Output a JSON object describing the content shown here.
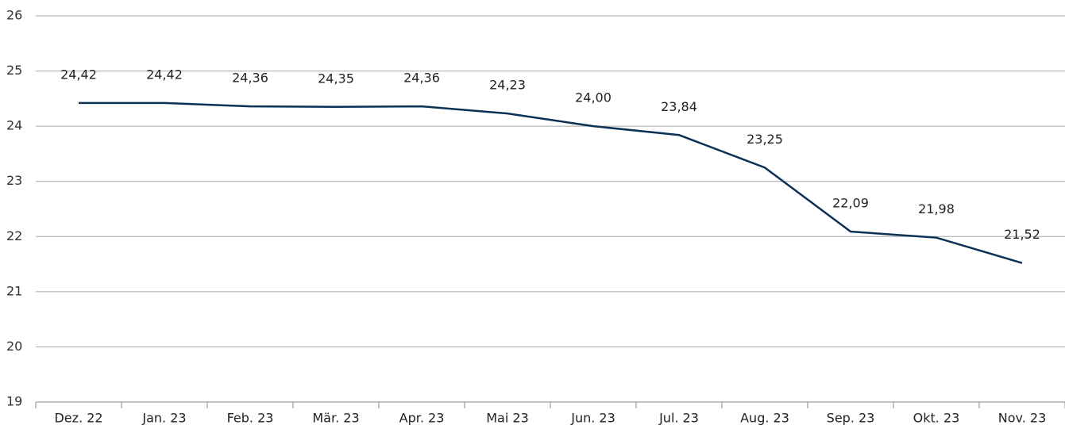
{
  "chart_data": {
    "type": "line",
    "categories": [
      "Dez. 22",
      "Jan. 23",
      "Feb. 23",
      "Mär. 23",
      "Apr. 23",
      "Mai 23",
      "Jun. 23",
      "Jul. 23",
      "Aug. 23",
      "Sep. 23",
      "Okt. 23",
      "Nov. 23"
    ],
    "values": [
      24.42,
      24.42,
      24.36,
      24.35,
      24.36,
      24.23,
      24.0,
      23.84,
      23.25,
      22.09,
      21.98,
      21.52
    ],
    "value_labels": [
      "24,42",
      "24,42",
      "24,36",
      "24,35",
      "24,36",
      "24,23",
      "24,00",
      "23,84",
      "23,25",
      "22,09",
      "21,98",
      "21,52"
    ],
    "color": "#0b3158",
    "ylim": [
      19,
      26
    ],
    "yticks": [
      19,
      20,
      21,
      22,
      23,
      24,
      25,
      26
    ],
    "grid": true
  }
}
